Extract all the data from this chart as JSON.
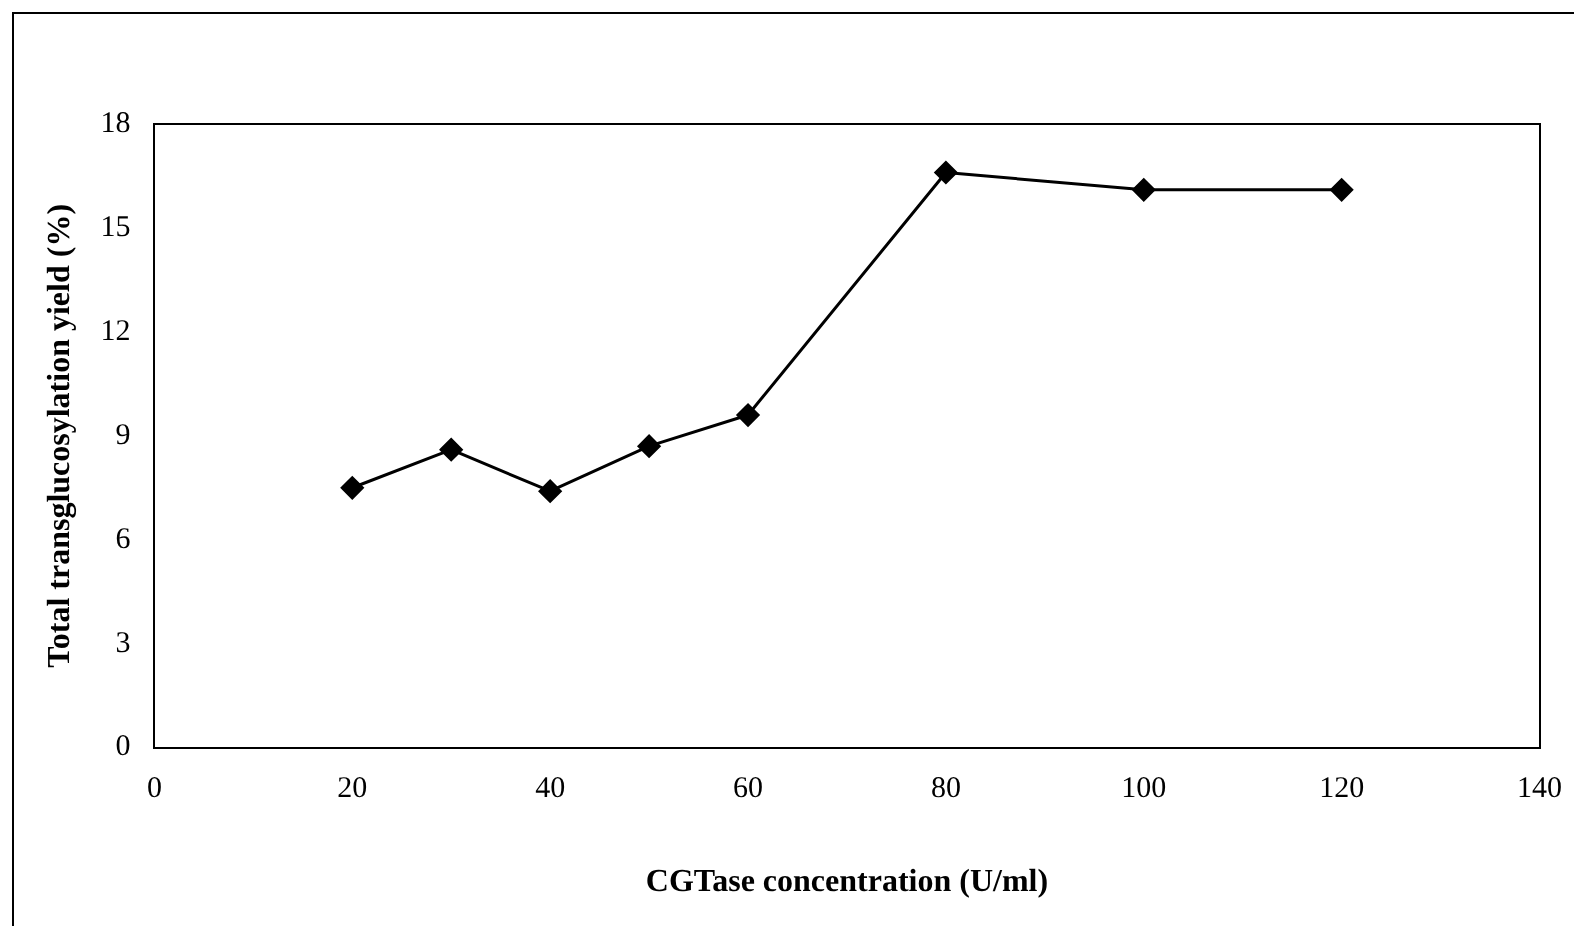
{
  "chart_data": {
    "type": "line",
    "xlabel": "CGTase concentration (U/ml)",
    "ylabel": "Total transglucosylation yield (%)",
    "x": [
      20,
      30,
      40,
      50,
      60,
      80,
      100,
      120
    ],
    "series": [
      {
        "color": "#000000",
        "values": [
          7.5,
          8.6,
          7.4,
          8.7,
          9.6,
          16.6,
          16.1,
          16.1
        ]
      }
    ],
    "xlim": [
      0,
      140
    ],
    "xticks": [
      0,
      20,
      40,
      60,
      80,
      100,
      120,
      140
    ],
    "ylim": [
      0,
      18
    ],
    "yticks": [
      0,
      3,
      6,
      9,
      12,
      15,
      18
    ],
    "grid": false,
    "legend": false,
    "marker": "diamond",
    "line_style": "solid"
  }
}
